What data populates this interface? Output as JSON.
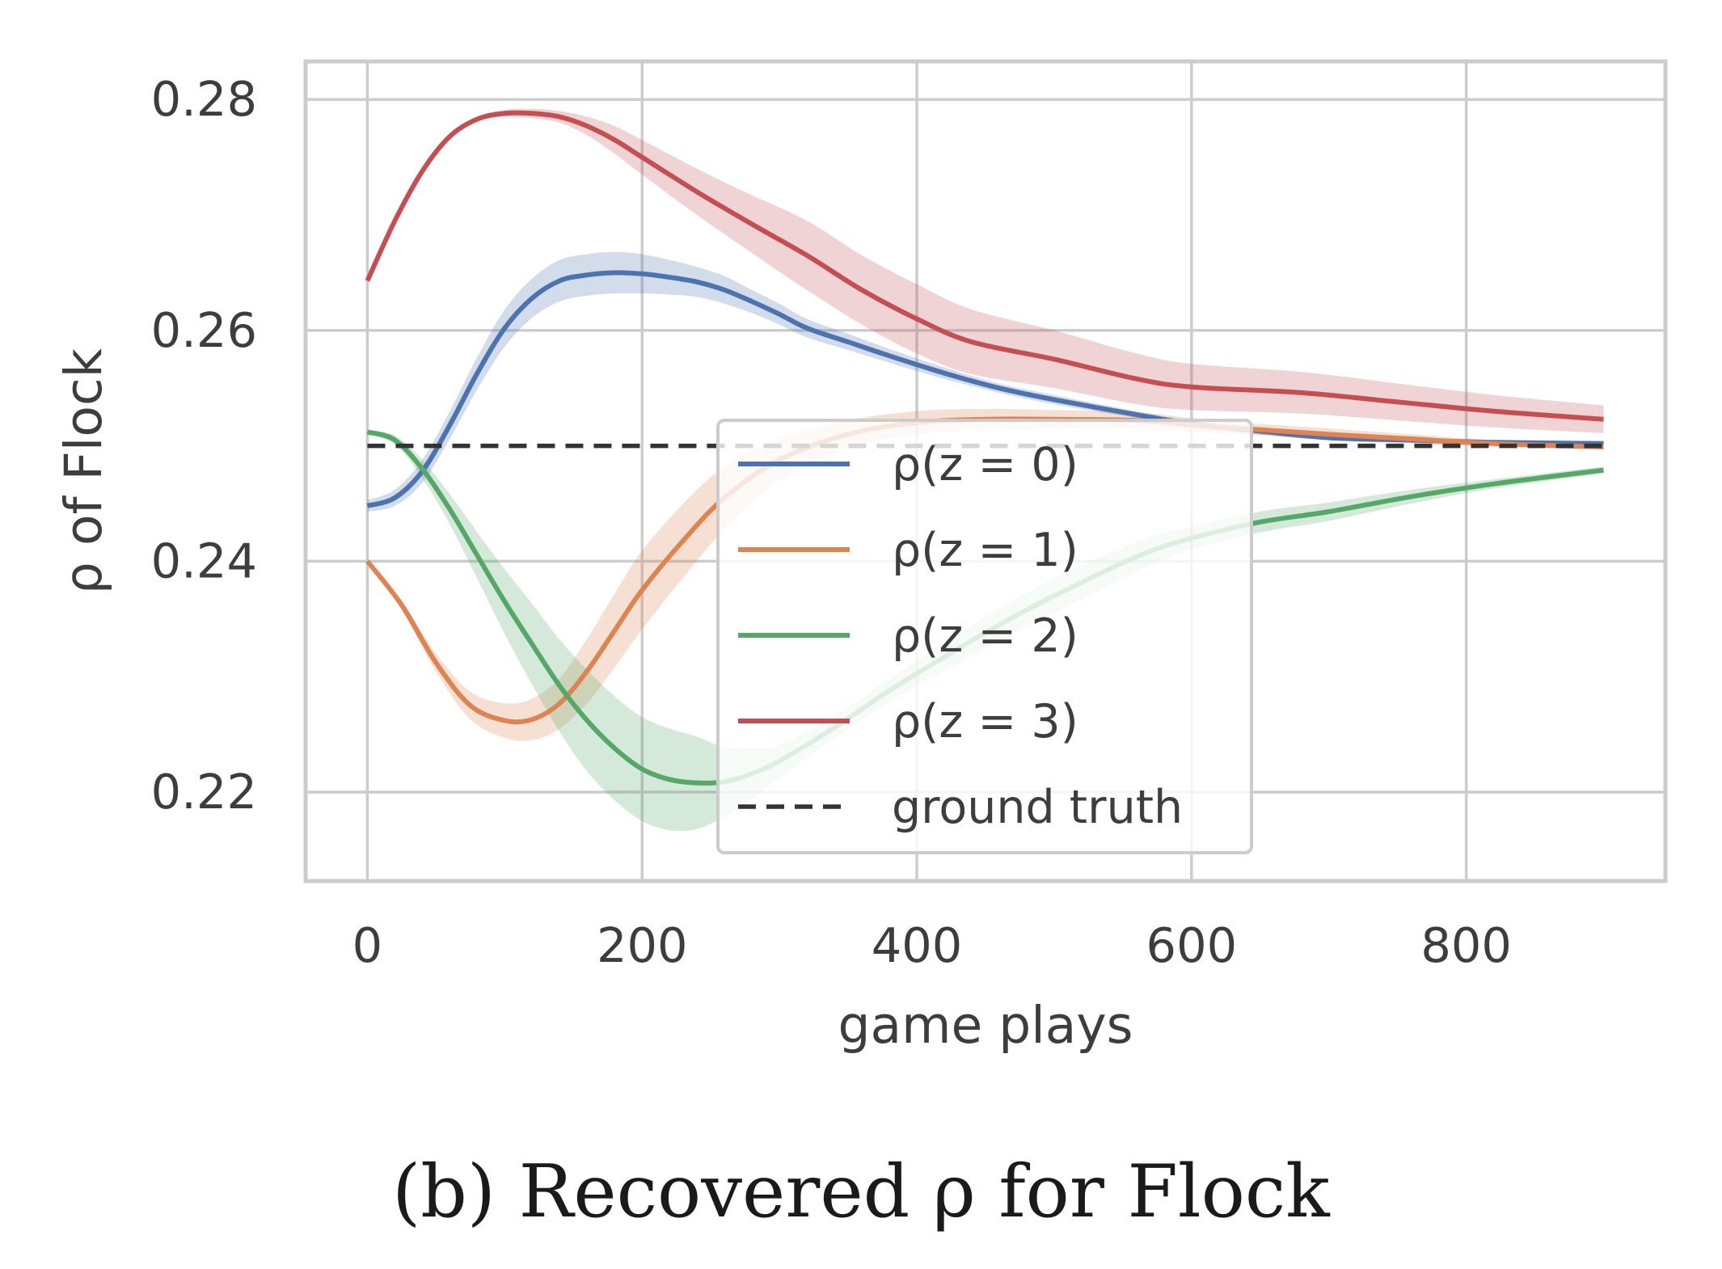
{
  "caption": "(b) Recovered ρ for Flock",
  "chart_data": {
    "type": "line",
    "title": "",
    "xlabel": "game plays",
    "ylabel": "ρ of Flock",
    "xlim": [
      -45,
      945
    ],
    "ylim": [
      0.2123,
      0.2833
    ],
    "xticks": [
      0,
      200,
      400,
      600,
      800
    ],
    "xtick_labels": [
      "0",
      "200",
      "400",
      "600",
      "800"
    ],
    "yticks": [
      0.22,
      0.24,
      0.26,
      0.28
    ],
    "ytick_labels": [
      "0.22",
      "0.24",
      "0.26",
      "0.28"
    ],
    "grid": true,
    "legend_position": "lower-center",
    "series": [
      {
        "name": "ρ(z = 0)",
        "color": "#4c72b0",
        "x": [
          0,
          20,
          40,
          60,
          80,
          100,
          120,
          140,
          160,
          180,
          200,
          220,
          240,
          260,
          280,
          300,
          320,
          350,
          380,
          420,
          460,
          500,
          560,
          600,
          640,
          700,
          760,
          820,
          900
        ],
        "y": [
          0.2448,
          0.2455,
          0.2478,
          0.2518,
          0.2563,
          0.2602,
          0.2628,
          0.2643,
          0.2648,
          0.265,
          0.2649,
          0.2646,
          0.2642,
          0.2635,
          0.2625,
          0.2614,
          0.2602,
          0.259,
          0.2578,
          0.2563,
          0.255,
          0.254,
          0.2527,
          0.2519,
          0.2514,
          0.2507,
          0.2505,
          0.2503,
          0.2502
        ],
        "band_half": [
          0.0005,
          0.0007,
          0.001,
          0.0012,
          0.0014,
          0.0016,
          0.0017,
          0.0018,
          0.0018,
          0.0018,
          0.0017,
          0.0015,
          0.0013,
          0.0012,
          0.001,
          0.0009,
          0.0008,
          0.0007,
          0.0006,
          0.0005,
          0.0004,
          0.0004,
          0.0003,
          0.0003,
          0.0003,
          0.0002,
          0.0002,
          0.0002,
          0.0002
        ]
      },
      {
        "name": "ρ(z = 1)",
        "color": "#dd8452",
        "x": [
          0,
          25,
          50,
          75,
          100,
          120,
          140,
          160,
          180,
          200,
          230,
          260,
          300,
          350,
          400,
          450,
          500,
          560,
          600,
          650,
          700,
          760,
          820,
          900
        ],
        "y": [
          0.24,
          0.2362,
          0.2312,
          0.2275,
          0.2262,
          0.2263,
          0.2277,
          0.2305,
          0.234,
          0.2375,
          0.2418,
          0.2455,
          0.2488,
          0.251,
          0.252,
          0.2523,
          0.2523,
          0.2522,
          0.2518,
          0.2514,
          0.251,
          0.2506,
          0.2502,
          0.2499
        ],
        "band_half": [
          0.0002,
          0.0004,
          0.0008,
          0.0012,
          0.0015,
          0.0018,
          0.0022,
          0.0028,
          0.0032,
          0.0034,
          0.0032,
          0.0027,
          0.0018,
          0.0012,
          0.001,
          0.0009,
          0.0008,
          0.0007,
          0.0006,
          0.0005,
          0.0005,
          0.0004,
          0.0003,
          0.0002
        ]
      },
      {
        "name": "ρ(z = 2)",
        "color": "#55a868",
        "x": [
          0,
          20,
          40,
          60,
          80,
          100,
          120,
          140,
          160,
          180,
          200,
          220,
          240,
          260,
          280,
          300,
          340,
          380,
          420,
          460,
          500,
          560,
          600,
          650,
          700,
          760,
          820,
          900
        ],
        "y": [
          0.2512,
          0.2505,
          0.248,
          0.2445,
          0.2405,
          0.2365,
          0.2328,
          0.2292,
          0.2262,
          0.2238,
          0.222,
          0.2211,
          0.2208,
          0.2209,
          0.2216,
          0.2227,
          0.2256,
          0.2288,
          0.2317,
          0.2345,
          0.237,
          0.2404,
          0.242,
          0.2434,
          0.2443,
          0.2456,
          0.2467,
          0.2479
        ],
        "band_half": [
          0.0002,
          0.0004,
          0.0008,
          0.0013,
          0.002,
          0.0028,
          0.0035,
          0.004,
          0.0044,
          0.0045,
          0.0045,
          0.0044,
          0.004,
          0.003,
          0.0022,
          0.0014,
          0.001,
          0.001,
          0.0012,
          0.0014,
          0.0015,
          0.0013,
          0.001,
          0.0009,
          0.0008,
          0.0006,
          0.0004,
          0.0003
        ]
      },
      {
        "name": "ρ(z = 3)",
        "color": "#c44e52",
        "x": [
          0,
          20,
          40,
          60,
          80,
          100,
          120,
          140,
          160,
          180,
          200,
          240,
          280,
          320,
          360,
          400,
          440,
          500,
          560,
          600,
          680,
          750,
          820,
          900
        ],
        "y": [
          0.2643,
          0.2695,
          0.2738,
          0.2768,
          0.2783,
          0.2788,
          0.2788,
          0.2785,
          0.2777,
          0.2765,
          0.275,
          0.272,
          0.2692,
          0.2665,
          0.2635,
          0.261,
          0.259,
          0.2575,
          0.2558,
          0.2551,
          0.2546,
          0.2538,
          0.253,
          0.2523
        ],
        "band_half": [
          0.0002,
          0.0002,
          0.0002,
          0.0002,
          0.0002,
          0.0003,
          0.0004,
          0.0005,
          0.0008,
          0.0012,
          0.0015,
          0.002,
          0.0025,
          0.003,
          0.003,
          0.003,
          0.0028,
          0.0025,
          0.0022,
          0.002,
          0.0018,
          0.0016,
          0.0014,
          0.0012
        ]
      },
      {
        "name": "ground truth",
        "color": "#333333",
        "dashed": true,
        "x": [
          0,
          900
        ],
        "y": [
          0.25,
          0.25
        ]
      }
    ]
  }
}
